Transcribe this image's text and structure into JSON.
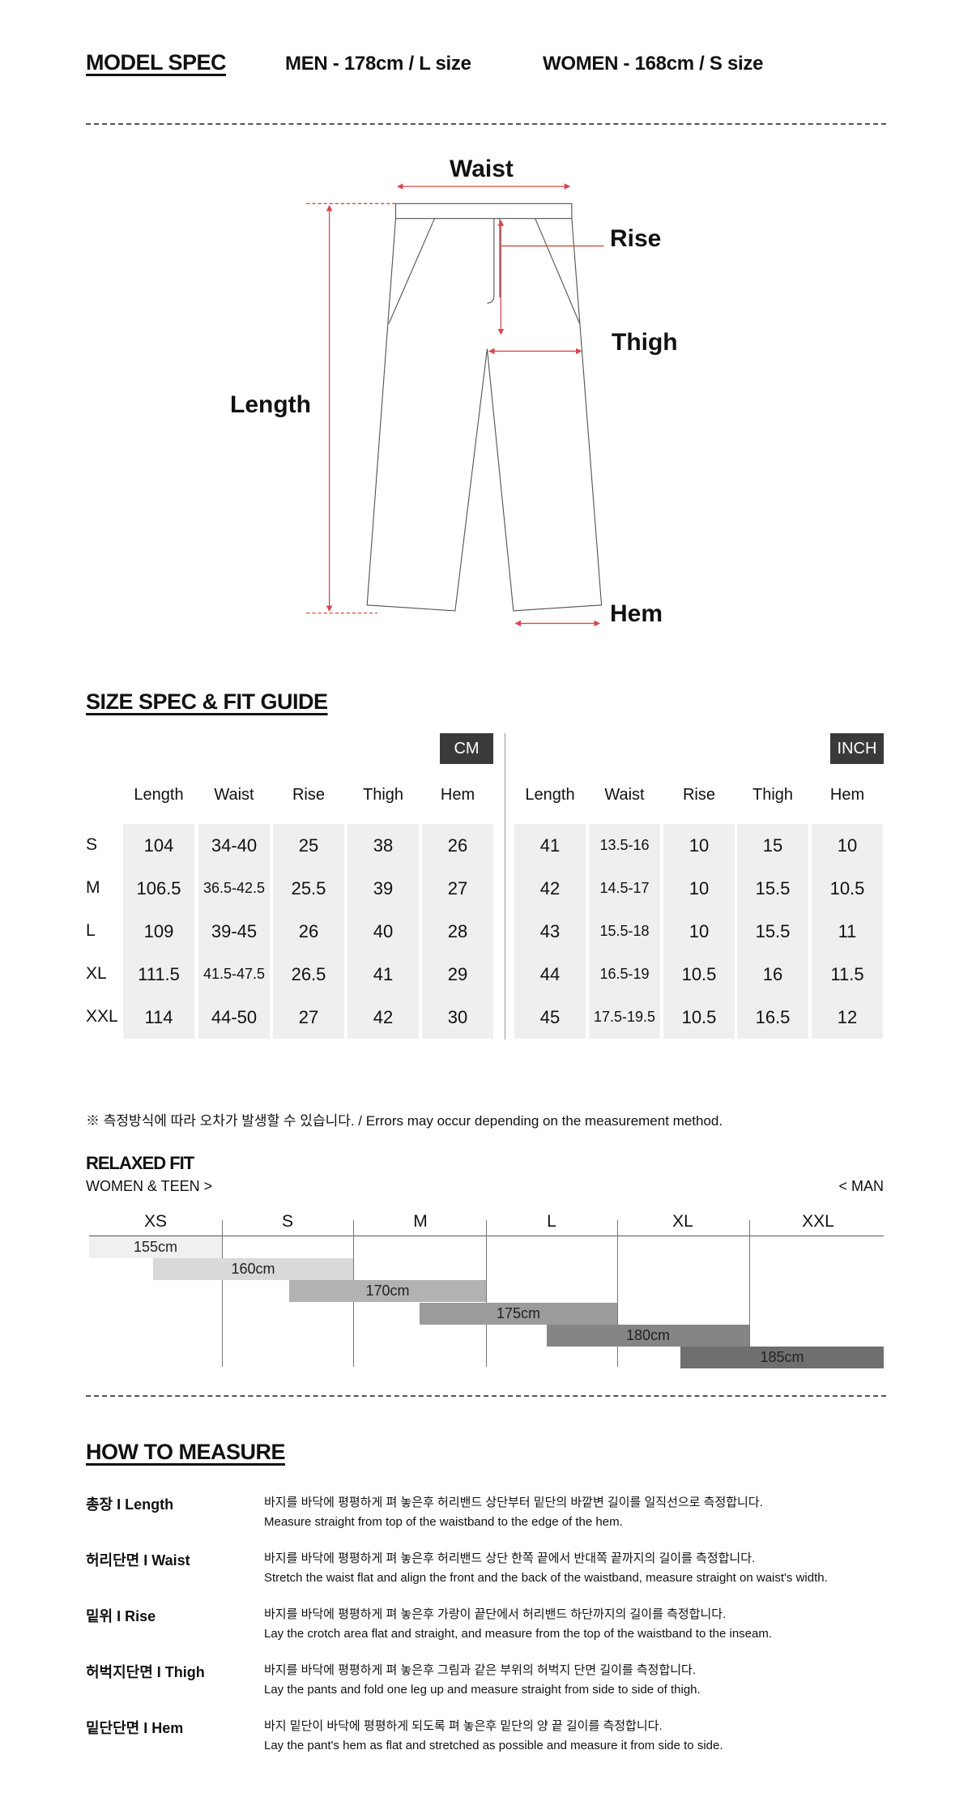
{
  "model_spec": {
    "title": "MODEL SPEC",
    "men": "MEN - 178cm / L size",
    "women": "WOMEN - 168cm / S size"
  },
  "diagram": {
    "labels": {
      "waist": "Waist",
      "rise": "Rise",
      "thigh": "Thigh",
      "length": "Length",
      "hem": "Hem"
    },
    "accent": "#d9474a"
  },
  "size_spec": {
    "title": "SIZE SPEC  &  FIT GUIDE",
    "cm_label": "CM",
    "inch_label": "INCH",
    "columns": [
      "Length",
      "Waist",
      "Rise",
      "Thigh",
      "Hem"
    ],
    "sizes": [
      "S",
      "M",
      "L",
      "XL",
      "XXL"
    ],
    "cm": [
      [
        "104",
        "34-40",
        "25",
        "38",
        "26"
      ],
      [
        "106.5",
        "36.5-42.5",
        "25.5",
        "39",
        "27"
      ],
      [
        "109",
        "39-45",
        "26",
        "40",
        "28"
      ],
      [
        "111.5",
        "41.5-47.5",
        "26.5",
        "41",
        "29"
      ],
      [
        "114",
        "44-50",
        "27",
        "42",
        "30"
      ]
    ],
    "inch": [
      [
        "41",
        "13.5-16",
        "10",
        "15",
        "10"
      ],
      [
        "42",
        "14.5-17",
        "10",
        "15.5",
        "10.5"
      ],
      [
        "43",
        "15.5-18",
        "10",
        "15.5",
        "11"
      ],
      [
        "44",
        "16.5-19",
        "10.5",
        "16",
        "11.5"
      ],
      [
        "45",
        "17.5-19.5",
        "10.5",
        "16.5",
        "12"
      ]
    ]
  },
  "note": "※ 측정방식에 따라 오차가 발생할 수 있습니다. / Errors may occur depending on the measurement method.",
  "fit": {
    "title": "RELAXED FIT",
    "left_label": "WOMEN & TEEN >",
    "right_label": "< MAN",
    "sizes": [
      "XS",
      "S",
      "M",
      "L",
      "XL",
      "XXL"
    ],
    "heights": [
      "155cm",
      "160cm",
      "170cm",
      "175cm",
      "180cm",
      "185cm"
    ],
    "colors": [
      "#f0f0f1",
      "#d9d9d9",
      "#b2b2b2",
      "#9b9b9b",
      "#858585",
      "#6f6f6f"
    ]
  },
  "how_to": {
    "title": "HOW TO MEASURE",
    "items": [
      {
        "label": "총장 I Length",
        "ko": "바지를 바닥에 평평하게 펴 놓은후 허리밴드 상단부터 밑단의 바깥변 길이를 일직선으로 측정합니다.",
        "en": "Measure straight from top of the waistband to the edge of the hem."
      },
      {
        "label": "허리단면 I Waist",
        "ko": "바지를 바닥에 평평하게 펴 놓은후 허리밴드 상단 한쪽 끝에서 반대쪽 끝까지의 길이를 측정합니다.",
        "en": "Stretch the waist flat and align the front and the back of the waistband, measure straight on waist's width."
      },
      {
        "label": "밑위 I Rise",
        "ko": "바지를 바닥에 평평하게 펴 놓은후 가랑이 끝단에서 허리밴드 하단까지의 길이를 측정합니다.",
        "en": "Lay the crotch area flat and straight, and measure from the top of the waistband to the inseam."
      },
      {
        "label": "허벅지단면 I Thigh",
        "ko": "바지를 바닥에 평평하게 펴 놓은후 그림과 같은 부위의 허벅지 단면 길이를 측정합니다.",
        "en": "Lay the pants and fold one leg up and measure straight from side to side of thigh."
      },
      {
        "label": "밑단단면 I Hem",
        "ko": "바지 밑단이 바닥에 평평하게 되도록 펴 놓은후 밑단의 양 끝 길이를 측정합니다.",
        "en": "Lay the pant's hem as flat and stretched as possible and measure it from side to side."
      }
    ]
  }
}
